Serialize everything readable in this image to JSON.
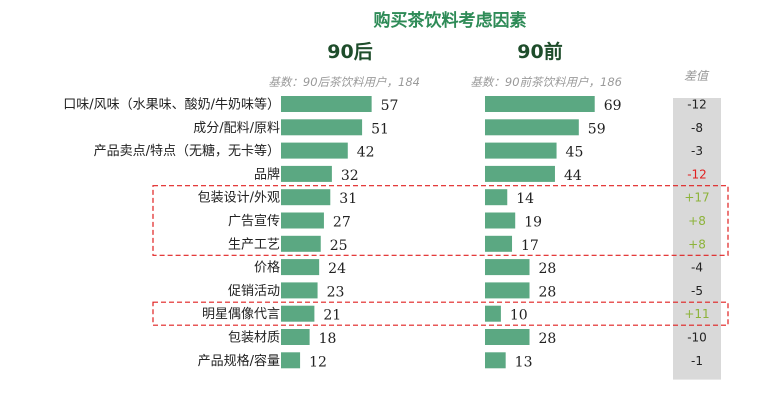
{
  "chart_data": {
    "type": "bar",
    "title": "购买茶饮料考虑因素",
    "categories": [
      "口味/风味（水果味、酸奶/牛奶味等）",
      "成分/配料/原料",
      "产品卖点/特点（无糖，无卡等）",
      "品牌",
      "包装设计/外观",
      "广告宣传",
      "生产工艺",
      "价格",
      "促销活动",
      "明星偶像代言",
      "包装材质",
      "产品规格/容量"
    ],
    "series": [
      {
        "name": "90后",
        "base_label": "基数：90后茶饮料用户，184",
        "values": [
          57,
          51,
          42,
          32,
          31,
          27,
          25,
          24,
          23,
          21,
          18,
          12
        ]
      },
      {
        "name": "90前",
        "base_label": "基数：90前茶饮料用户，186",
        "values": [
          69,
          59,
          45,
          44,
          14,
          19,
          17,
          28,
          28,
          10,
          28,
          13
        ]
      }
    ],
    "difference": {
      "label": "差值",
      "values": [
        "-12",
        "-8",
        "-3",
        "-12",
        "+17",
        "+8",
        "+8",
        "-4",
        "-5",
        "+11",
        "-10",
        "-1"
      ],
      "colors": [
        "#222222",
        "#222222",
        "#222222",
        "#e02020",
        "#8db33a",
        "#8db33a",
        "#8db33a",
        "#222222",
        "#222222",
        "#8db33a",
        "#222222",
        "#222222"
      ]
    },
    "highlighted_rows": [
      [
        4,
        6
      ],
      [
        9,
        9
      ]
    ],
    "colors": {
      "bar": "#5ba882",
      "highlight_border": "#e02020",
      "diff_background": "#d9d9d9"
    }
  }
}
